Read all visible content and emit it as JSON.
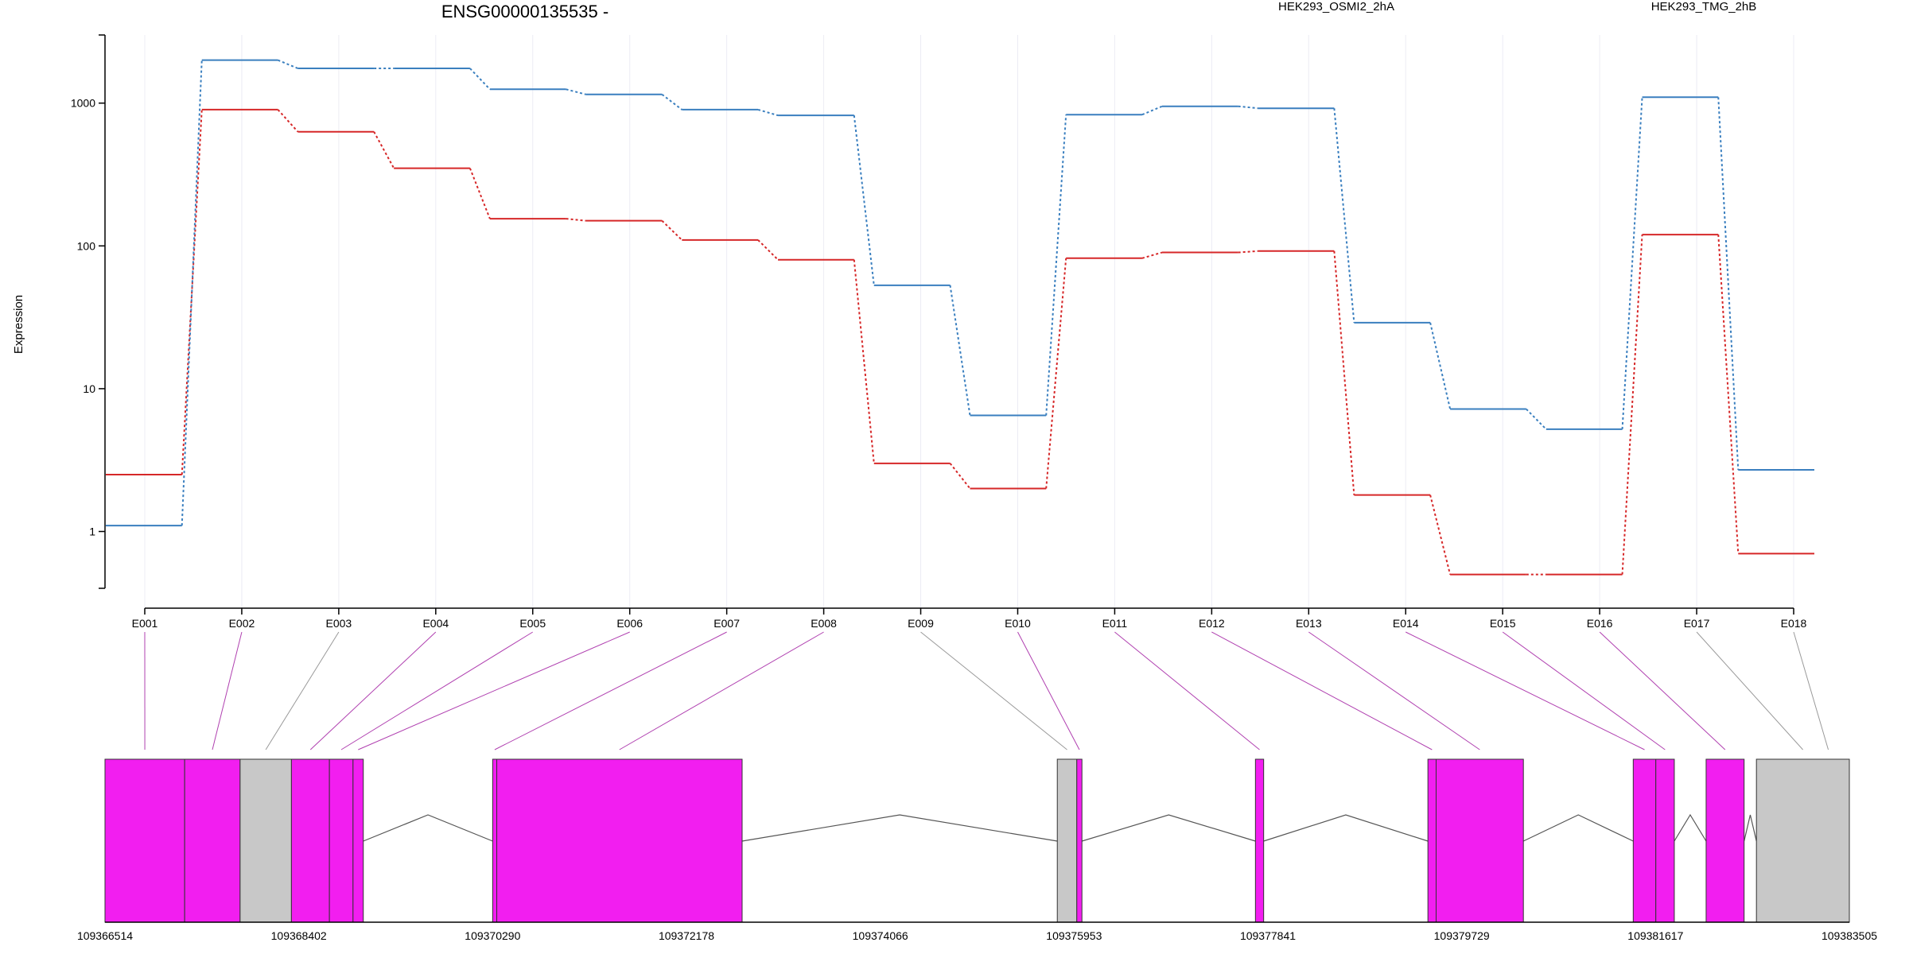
{
  "chart_data": {
    "type": "line",
    "title": "ENSG00000135535 -",
    "ylabel": "Expression",
    "yscale": "log",
    "ylim": [
      0.4,
      3000
    ],
    "ytick_labels": [
      "1",
      "10",
      "100",
      "1000"
    ],
    "ytick_values": [
      1,
      10,
      100,
      1000
    ],
    "categories": [
      "E001",
      "E002",
      "E003",
      "E004",
      "E005",
      "E006",
      "E007",
      "E008",
      "E009",
      "E010",
      "E011",
      "E012",
      "E013",
      "E014",
      "E015",
      "E016",
      "E017",
      "E018"
    ],
    "series": [
      {
        "name": "HEK293_OSMI2_2hA",
        "color": "#d62728",
        "values": [
          2.5,
          900,
          630,
          350,
          155,
          150,
          110,
          80,
          3.0,
          2.0,
          82,
          90,
          92,
          1.8,
          0.5,
          0.5,
          120,
          0.7
        ]
      },
      {
        "name": "HEK293_TMG_2hB",
        "color": "#3a7fbf",
        "values": [
          1.1,
          2000,
          1750,
          1750,
          1250,
          1150,
          900,
          820,
          53,
          6.5,
          830,
          950,
          920,
          29,
          7.2,
          5.2,
          1100,
          2.7
        ]
      }
    ],
    "gene_track": {
      "coordinate_labels": [
        "109366514",
        "109368402",
        "109370290",
        "109372178",
        "109374066",
        "109375953",
        "109377841",
        "109379729",
        "109381617",
        "109383505"
      ],
      "coordinate_range": [
        109366514,
        109383505
      ],
      "exon_bins": [
        {
          "id": "E001",
          "start": 109366514,
          "end": 109367290,
          "type": "coding"
        },
        {
          "id": "E002",
          "start": 109367290,
          "end": 109367830,
          "type": "coding"
        },
        {
          "id": "E003",
          "start": 109367830,
          "end": 109368330,
          "type": "noncoding"
        },
        {
          "id": "E004",
          "start": 109368330,
          "end": 109368700,
          "type": "coding"
        },
        {
          "id": "E005",
          "start": 109368700,
          "end": 109368930,
          "type": "coding"
        },
        {
          "id": "E006",
          "start": 109368930,
          "end": 109369030,
          "type": "coding"
        },
        {
          "id": "E007",
          "start": 109370290,
          "end": 109370330,
          "type": "coding"
        },
        {
          "id": "E008",
          "start": 109370330,
          "end": 109372720,
          "type": "coding"
        },
        {
          "id": "E009",
          "start": 109375790,
          "end": 109375980,
          "type": "noncoding"
        },
        {
          "id": "E010",
          "start": 109375980,
          "end": 109376030,
          "type": "coding"
        },
        {
          "id": "E011",
          "start": 109377720,
          "end": 109377800,
          "type": "coding"
        },
        {
          "id": "E012",
          "start": 109379400,
          "end": 109379480,
          "type": "coding"
        },
        {
          "id": "E013",
          "start": 109379480,
          "end": 109380330,
          "type": "coding"
        },
        {
          "id": "E014",
          "start": 109381400,
          "end": 109381620,
          "type": "coding"
        },
        {
          "id": "E015",
          "start": 109381620,
          "end": 109381800,
          "type": "coding"
        },
        {
          "id": "E016",
          "start": 109382110,
          "end": 109382480,
          "type": "coding"
        },
        {
          "id": "E017",
          "start": 109382600,
          "end": 109383505,
          "type": "noncoding"
        },
        {
          "id": "E018",
          "start": 109383505,
          "end": 109383505,
          "type": "noncoding"
        }
      ],
      "introns": [
        [
          109369030,
          109370290
        ],
        [
          109372720,
          109375790
        ],
        [
          109376030,
          109377720
        ],
        [
          109377800,
          109379400
        ],
        [
          109380330,
          109381400
        ],
        [
          109381800,
          109382110
        ],
        [
          109382480,
          109382600
        ]
      ],
      "colors": {
        "coding": "#f21ef0",
        "noncoding": "#c8c8c8",
        "connector": "#b040b0",
        "intron": "#555555"
      }
    }
  }
}
